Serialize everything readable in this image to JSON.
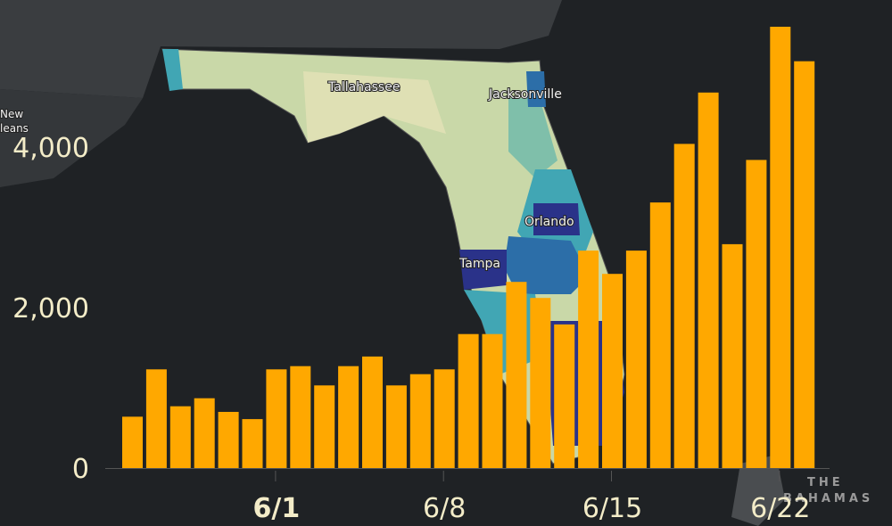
{
  "map": {
    "labels": {
      "tallahassee": "Tallahassee",
      "jacksonville": "Jacksonville",
      "orlando": "Orlando",
      "tampa": "Tampa",
      "new_orleans_1": "New",
      "new_orleans_2": "leans",
      "bahamas_1": "THE",
      "bahamas_2": "BAHAMAS"
    },
    "colors": {
      "land": "#3a3d40",
      "county_light": "#dfe0b4",
      "county_mid": "#a9cf9c",
      "county_teal": "#41a6b4",
      "county_blue": "#2c6ea8",
      "county_dark": "#2a3289"
    }
  },
  "chart_data": {
    "type": "bar",
    "title": "",
    "xlabel": "",
    "ylabel": "",
    "bar_color": "#ffa800",
    "ylim": [
      0,
      5600
    ],
    "yticks": [
      0,
      2000,
      4000
    ],
    "ytick_labels": [
      "0",
      "2,000",
      "4,000"
    ],
    "xtick_labels": [
      "6/1",
      "6/8",
      "6/15",
      "6/22"
    ],
    "xtick_dates": [
      "6/1",
      "6/8",
      "6/15",
      "6/22"
    ],
    "grid": false,
    "categories": [
      "5/26",
      "5/27",
      "5/28",
      "5/29",
      "5/30",
      "5/31",
      "6/1",
      "6/2",
      "6/3",
      "6/4",
      "6/5",
      "6/6",
      "6/7",
      "6/8",
      "6/9",
      "6/10",
      "6/11",
      "6/12",
      "6/13",
      "6/14",
      "6/15",
      "6/16",
      "6/17",
      "6/18",
      "6/19",
      "6/20",
      "6/21",
      "6/22",
      "6/23"
    ],
    "values": [
      640,
      1230,
      770,
      870,
      700,
      610,
      1230,
      1270,
      1030,
      1270,
      1390,
      1030,
      1170,
      1230,
      1670,
      1670,
      2320,
      2120,
      1790,
      2710,
      2420,
      2710,
      3310,
      4040,
      4680,
      2790,
      3840,
      5500,
      5070
    ]
  }
}
